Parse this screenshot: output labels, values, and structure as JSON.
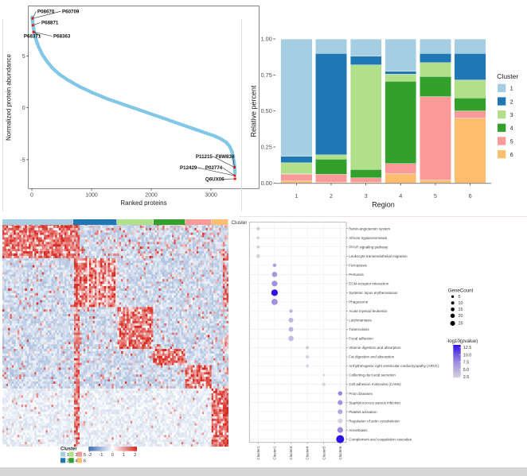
{
  "figure": {
    "description": "Four-panel proteomics figure: ranked protein abundance S-curve, per-region cluster composition stacked bars, protein expression heatmap with cluster annotation, and KEGG pathway enrichment dot plot"
  },
  "colors": {
    "cluster": [
      "#A6CEE3",
      "#1F78B4",
      "#B2DF8A",
      "#33A02C",
      "#FB9A99",
      "#FDBF6F"
    ],
    "curve": "#82C6E8",
    "highlight": "#E8160C",
    "heat_low": "#3B69B1",
    "heat_high": "#D6261E",
    "dot_low": "#D6D3DE",
    "dot_mid": "#9B87E0",
    "dot_high": "#2B12E4",
    "bottom_strip": "#D6D6D6"
  },
  "chart_data": [
    {
      "id": "rank_abundance",
      "type": "scatter",
      "xlabel": "Ranked proteins",
      "ylabel": "Normalized protein abundance",
      "xticks": [
        0,
        1000,
        2000,
        3000
      ],
      "yticks": [
        -5,
        0,
        5
      ],
      "xlim": [
        -150,
        3560
      ],
      "ylim": [
        -7.8,
        9.5
      ],
      "curve": [
        [
          5,
          8.75
        ],
        [
          15,
          8.3
        ],
        [
          30,
          7.6
        ],
        [
          50,
          7.0
        ],
        [
          80,
          6.4
        ],
        [
          120,
          5.8
        ],
        [
          180,
          5.1
        ],
        [
          250,
          4.5
        ],
        [
          350,
          3.8
        ],
        [
          470,
          3.2
        ],
        [
          600,
          2.7
        ],
        [
          780,
          2.1
        ],
        [
          1000,
          1.5
        ],
        [
          1250,
          0.9
        ],
        [
          1500,
          0.4
        ],
        [
          1750,
          -0.1
        ],
        [
          2000,
          -0.6
        ],
        [
          2250,
          -1.1
        ],
        [
          2500,
          -1.6
        ],
        [
          2700,
          -2.0
        ],
        [
          2900,
          -2.4
        ],
        [
          3050,
          -2.7
        ],
        [
          3150,
          -2.95
        ],
        [
          3250,
          -3.3
        ],
        [
          3310,
          -3.7
        ],
        [
          3350,
          -4.2
        ],
        [
          3375,
          -4.8
        ],
        [
          3390,
          -5.4
        ],
        [
          3398,
          -5.9
        ],
        [
          3403,
          -6.3
        ]
      ],
      "highlight_points": [
        [
          12,
          8.62
        ],
        [
          16,
          7.97
        ],
        [
          28,
          7.32
        ],
        [
          3395,
          -5.75
        ],
        [
          3400,
          -6.55
        ],
        [
          3402,
          -6.85
        ]
      ],
      "annotations": [
        {
          "text": "P08670",
          "x": 93,
          "y": 9.15,
          "dot": 0
        },
        {
          "text": "P60709",
          "x": 507,
          "y": 9.15,
          "dot": 0
        },
        {
          "text": "P68871",
          "x": 160,
          "y": 8.05,
          "dot": 1
        },
        {
          "text": "P68371",
          "x": -135,
          "y": 6.75,
          "dot": 2
        },
        {
          "text": "P68363",
          "x": 360,
          "y": 6.75,
          "dot": 2
        },
        {
          "text": "P11215",
          "x": 2745,
          "y": -4.85,
          "dot": 3
        },
        {
          "text": "F8W830",
          "x": 3080,
          "y": -4.85,
          "dot": 3
        },
        {
          "text": "P12429",
          "x": 2480,
          "y": -5.93,
          "dot": 4
        },
        {
          "text": "P02774",
          "x": 2905,
          "y": -5.93,
          "dot": 4
        },
        {
          "text": "Q6UX06",
          "x": 2905,
          "y": -7.05,
          "dot": 5
        }
      ]
    },
    {
      "id": "region_composition",
      "type": "bar",
      "xlabel": "Region",
      "ylabel": "Relative percent",
      "categories": [
        "1",
        "2",
        "3",
        "4",
        "5",
        "6"
      ],
      "ytick_labels": [
        "0.00",
        "0.25",
        "0.50",
        "0.75",
        "1.00"
      ],
      "yticks": [
        0,
        0.25,
        0.5,
        0.75,
        1
      ],
      "ylim": [
        0,
        1
      ],
      "legend_title": "Cluster",
      "legend_labels": [
        "1",
        "2",
        "3",
        "4",
        "5",
        "6"
      ],
      "series": [
        {
          "name": "1",
          "values": [
            0.815,
            0.1,
            0.12,
            0.225,
            0.1,
            0.1
          ]
        },
        {
          "name": "2",
          "values": [
            0.045,
            0.705,
            0.06,
            0.02,
            0.065,
            0.185
          ]
        },
        {
          "name": "3",
          "values": [
            0.075,
            0.03,
            0.725,
            0.05,
            0.095,
            0.125
          ]
        },
        {
          "name": "4",
          "values": [
            0.005,
            0.105,
            0.06,
            0.57,
            0.14,
            0.09
          ]
        },
        {
          "name": "5",
          "values": [
            0.045,
            0.055,
            0.03,
            0.07,
            0.58,
            0.05
          ]
        },
        {
          "name": "6",
          "values": [
            0.015,
            0.005,
            0.005,
            0.065,
            0.02,
            0.45
          ]
        }
      ]
    },
    {
      "id": "protein_heatmap",
      "type": "heatmap",
      "annotation_label": "Cluster",
      "cluster_fractions": [
        0.313,
        0.194,
        0.162,
        0.141,
        0.116,
        0.074
      ],
      "row_group_fractions": [
        0.16,
        0.22,
        0.18,
        0.08,
        0.1,
        0.26
      ],
      "grid": {
        "rows": 96,
        "cols": 120,
        "seed": 1337
      },
      "legend_title": "Cluster",
      "legend_labels": [
        "1",
        "2",
        "3",
        "4",
        "5",
        "6"
      ],
      "colorbar_ticks": [
        "-2",
        "-1",
        "0",
        "1",
        "2"
      ],
      "value_range": [
        -2,
        2
      ]
    },
    {
      "id": "kegg_enrichment",
      "type": "bubble",
      "x_categories": [
        "Cluster1",
        "Cluster2",
        "Cluster3",
        "Cluster4",
        "Cluster5",
        "Cluster6"
      ],
      "rows": [
        {
          "pathway": "Renin-angiotensin system",
          "cluster": 1,
          "gene_count": 5,
          "neglog10_pvalue": 3.5
        },
        {
          "pathway": "African trypanosomiasis",
          "cluster": 1,
          "gene_count": 4,
          "neglog10_pvalue": 3.0
        },
        {
          "pathway": "PPAR signaling pathway",
          "cluster": 1,
          "gene_count": 5,
          "neglog10_pvalue": 3.0
        },
        {
          "pathway": "Leukocyte transendothelial migration",
          "cluster": 1,
          "gene_count": 7,
          "neglog10_pvalue": 2.5
        },
        {
          "pathway": "Ferroptosis",
          "cluster": 2,
          "gene_count": 6,
          "neglog10_pvalue": 6.0
        },
        {
          "pathway": "Pertussis",
          "cluster": 2,
          "gene_count": 10,
          "neglog10_pvalue": 6.5
        },
        {
          "pathway": "ECM-receptor interaction",
          "cluster": 2,
          "gene_count": 11,
          "neglog10_pvalue": 7.0
        },
        {
          "pathway": "Systemic lupus erythematosus",
          "cluster": 2,
          "gene_count": 13,
          "neglog10_pvalue": 12.5
        },
        {
          "pathway": "Phagosome",
          "cluster": 2,
          "gene_count": 12,
          "neglog10_pvalue": 7.0
        },
        {
          "pathway": "Acute myeloid leukemia",
          "cluster": 3,
          "gene_count": 6,
          "neglog10_pvalue": 4.5
        },
        {
          "pathway": "Leishmaniasis",
          "cluster": 3,
          "gene_count": 9,
          "neglog10_pvalue": 4.5
        },
        {
          "pathway": "Tuberculosis",
          "cluster": 3,
          "gene_count": 9,
          "neglog10_pvalue": 4.5
        },
        {
          "pathway": "Focal adhesion",
          "cluster": 3,
          "gene_count": 10,
          "neglog10_pvalue": 4.0
        },
        {
          "pathway": "Vitamin digestion and absorption",
          "cluster": 4,
          "gene_count": 5,
          "neglog10_pvalue": 3.5
        },
        {
          "pathway": "Fat digestion and absorption",
          "cluster": 4,
          "gene_count": 5,
          "neglog10_pvalue": 3.0
        },
        {
          "pathway": "Arrhythmogenic right ventricular cardiomyopathy (ARVC)",
          "cluster": 4,
          "gene_count": 5,
          "neglog10_pvalue": 2.5
        },
        {
          "pathway": "Collecting duct acid secretion",
          "cluster": 5,
          "gene_count": 3,
          "neglog10_pvalue": 2.5
        },
        {
          "pathway": "Cell adhesion molecules (CAMs)",
          "cluster": 5,
          "gene_count": 6,
          "neglog10_pvalue": 2.5
        },
        {
          "pathway": "Prion diseases",
          "cluster": 6,
          "gene_count": 8,
          "neglog10_pvalue": 7.5
        },
        {
          "pathway": "Staphylococcus aureus infection",
          "cluster": 6,
          "gene_count": 9,
          "neglog10_pvalue": 7.0
        },
        {
          "pathway": "Platelet activation",
          "cluster": 6,
          "gene_count": 9,
          "neglog10_pvalue": 5.5
        },
        {
          "pathway": "Regulation of actin cytoskeleton",
          "cluster": 6,
          "gene_count": 9,
          "neglog10_pvalue": 2.5
        },
        {
          "pathway": "Amoebiasis",
          "cluster": 6,
          "gene_count": 11,
          "neglog10_pvalue": 7.5
        },
        {
          "pathway": "Complement and coagulation cascades",
          "cluster": 6,
          "gene_count": 16,
          "neglog10_pvalue": 12.5
        }
      ],
      "size_legend": {
        "title": "GeneCount",
        "values": [
          5,
          10,
          15,
          20,
          25
        ]
      },
      "color_legend": {
        "title": "-log10(pvalue)",
        "ticks": [
          "12.5",
          "10.0",
          "7.5",
          "5.0",
          "2.5"
        ]
      }
    }
  ]
}
